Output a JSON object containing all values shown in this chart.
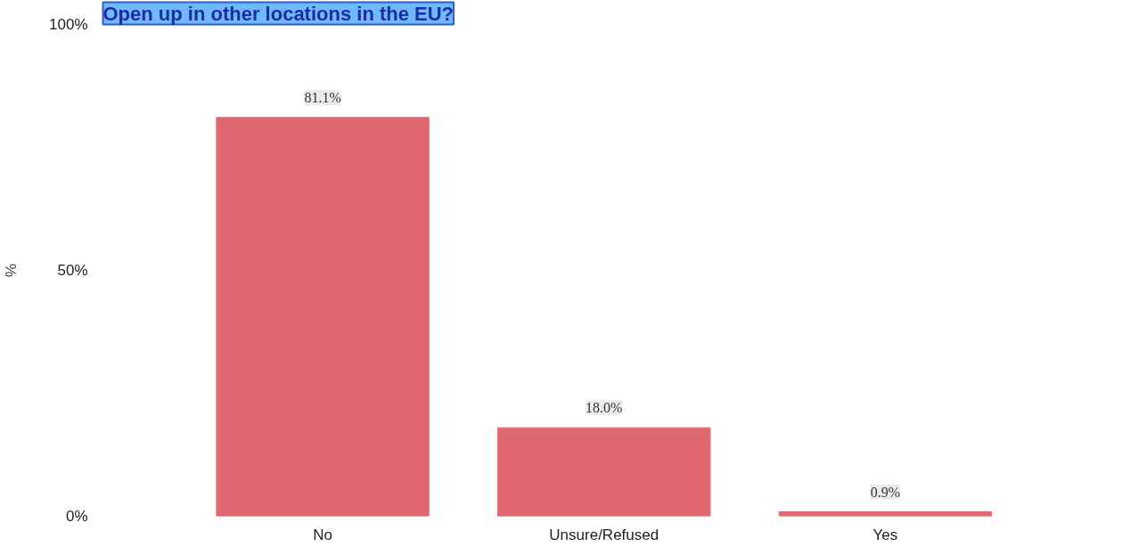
{
  "chart_data": {
    "type": "bar",
    "title": "Open up in other locations in the EU?",
    "ylabel": "%",
    "categories": [
      "No",
      "Unsure/Refused",
      "Yes"
    ],
    "values": [
      81.1,
      18.0,
      0.9
    ],
    "value_labels": [
      "81.1%",
      "18.0%",
      "0.9%"
    ],
    "color": "#e06870",
    "ylim": [
      0,
      100
    ],
    "yticks": [
      {
        "value": 0,
        "label": "0%"
      },
      {
        "value": 50,
        "label": "50%"
      },
      {
        "value": 100,
        "label": "100%"
      }
    ]
  }
}
